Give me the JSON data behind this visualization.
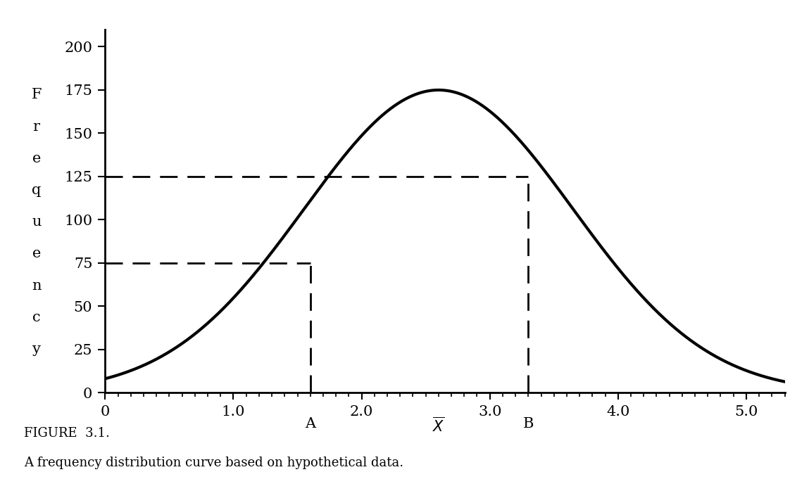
{
  "title": "FIGURE  3.1.",
  "subtitle": "A frequency distribution curve based on hypothetical data.",
  "ylabel_letters": [
    "F",
    "r",
    "e",
    "q",
    "u",
    "e",
    "n",
    "c",
    "y"
  ],
  "xlabel_ticks": [
    0,
    1.0,
    2.0,
    3.0,
    4.0,
    5.0
  ],
  "yticks": [
    0,
    25,
    50,
    75,
    100,
    125,
    150,
    175,
    200
  ],
  "ylim": [
    0,
    210
  ],
  "xlim": [
    0,
    5.3
  ],
  "curve_mean": 2.6,
  "curve_std": 1.05,
  "curve_peak": 175,
  "point_A_x": 1.6,
  "point_A_y": 75,
  "point_B_x": 3.3,
  "point_B_y": 125,
  "xbar_x": 2.6,
  "line_color": "#000000",
  "dashed_color": "#000000",
  "background_color": "#ffffff",
  "curve_linewidth": 3.0,
  "dashed_linewidth": 2.0
}
